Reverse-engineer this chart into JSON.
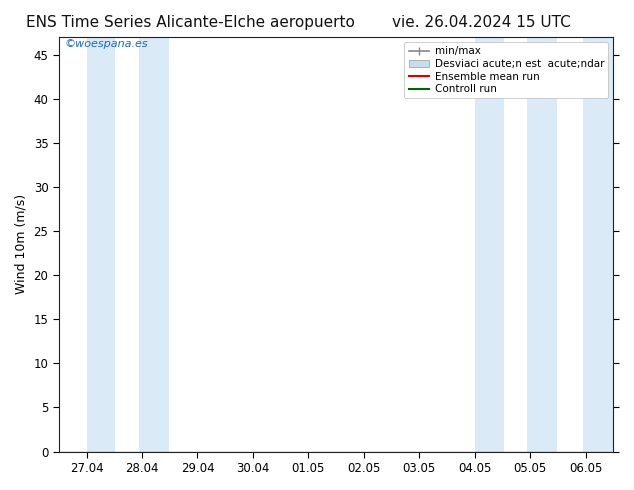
{
  "title_left": "ENS Time Series Alicante-Elche aeropuerto",
  "title_right": "vie. 26.04.2024 15 UTC",
  "ylabel": "Wind 10m (m/s)",
  "ylim": [
    0,
    47
  ],
  "yticks": [
    0,
    5,
    10,
    15,
    20,
    25,
    30,
    35,
    40,
    45
  ],
  "x_labels": [
    "27.04",
    "28.04",
    "29.04",
    "30.04",
    "01.05",
    "02.05",
    "03.05",
    "04.05",
    "05.05",
    "06.05"
  ],
  "x_positions": [
    0,
    1,
    2,
    3,
    4,
    5,
    6,
    7,
    8,
    9
  ],
  "watermark": "©woespana.es",
  "legend_line1": "min/max",
  "legend_line2": "Desviaci acute;n est  acute;ndar",
  "legend_line3": "Ensemble mean run",
  "legend_line4": "Controll run",
  "band_color": "#daeaf7",
  "ensemble_mean_color": "#dd0000",
  "control_run_color": "#006600",
  "background_color": "#ffffff",
  "plot_bg_color": "#ffffff",
  "title_fontsize": 11,
  "axis_fontsize": 9,
  "tick_fontsize": 8.5,
  "n_days": 10,
  "shaded_bands": [
    [
      0.0,
      0.52
    ],
    [
      0.95,
      1.48
    ],
    [
      7.0,
      7.52
    ],
    [
      7.95,
      8.48
    ],
    [
      8.95,
      9.5
    ]
  ],
  "xlim": [
    -0.5,
    9.5
  ]
}
